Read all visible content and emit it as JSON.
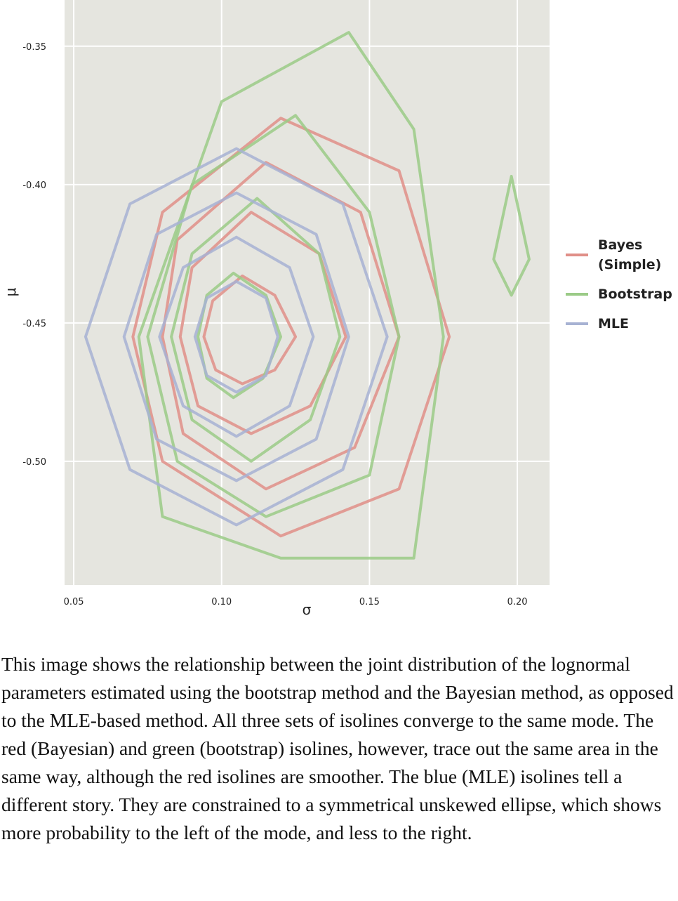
{
  "chart_data": {
    "type": "contour",
    "xlabel": "σ",
    "ylabel": "μ",
    "xlim": [
      0.0469,
      0.2109
    ],
    "ylim": [
      -0.5447,
      -0.3333
    ],
    "xticks": [
      0.05,
      {
        "value": 0.1,
        "label": "0.10"
      },
      0.15,
      {
        "value": 0.2,
        "label": "0.20"
      }
    ],
    "yticks": [
      -0.35,
      {
        "value": -0.4,
        "label": "-0.40"
      },
      -0.45,
      {
        "value": -0.5,
        "label": "-0.50"
      }
    ],
    "grid": true,
    "legend": "right",
    "series": [
      {
        "name": "Bayes (Simple)",
        "color": "#e08f88",
        "contours": [
          {
            "x": [
              0.177,
              0.16,
              0.12,
              0.08,
              0.07,
              0.08,
              0.12,
              0.16
            ],
            "y": [
              -0.455,
              -0.395,
              -0.376,
              -0.41,
              -0.455,
              -0.5,
              -0.527,
              -0.51
            ]
          },
          {
            "x": [
              0.16,
              0.147,
              0.115,
              0.085,
              0.08,
              0.087,
              0.115,
              0.145
            ],
            "y": [
              -0.455,
              -0.41,
              -0.392,
              -0.42,
              -0.455,
              -0.49,
              -0.51,
              -0.495
            ]
          },
          {
            "x": [
              0.142,
              0.133,
              0.11,
              0.09,
              0.086,
              0.092,
              0.11,
              0.13
            ],
            "y": [
              -0.455,
              -0.425,
              -0.41,
              -0.43,
              -0.455,
              -0.48,
              -0.49,
              -0.48
            ]
          },
          {
            "x": [
              0.125,
              0.118,
              0.107,
              0.097,
              0.094,
              0.098,
              0.107,
              0.118
            ],
            "y": [
              -0.455,
              -0.44,
              -0.433,
              -0.442,
              -0.455,
              -0.467,
              -0.472,
              -0.467
            ]
          }
        ]
      },
      {
        "name": "Bootstrap",
        "color": "#9bcb87",
        "contours": [
          {
            "x": [
              0.175,
              0.165,
              0.143,
              0.1,
              0.072,
              0.08,
              0.12,
              0.165
            ],
            "y": [
              -0.455,
              -0.38,
              -0.345,
              -0.37,
              -0.455,
              -0.52,
              -0.535,
              -0.535
            ]
          },
          {
            "x": [
              0.16,
              0.15,
              0.125,
              0.09,
              0.075,
              0.085,
              0.115,
              0.15
            ],
            "y": [
              -0.455,
              -0.41,
              -0.375,
              -0.4,
              -0.455,
              -0.5,
              -0.52,
              -0.505
            ]
          },
          {
            "x": [
              0.14,
              0.133,
              0.112,
              0.09,
              0.083,
              0.09,
              0.11,
              0.13
            ],
            "y": [
              -0.455,
              -0.425,
              -0.405,
              -0.425,
              -0.455,
              -0.485,
              -0.5,
              -0.485
            ]
          },
          {
            "x": [
              0.12,
              0.115,
              0.104,
              0.095,
              0.092,
              0.095,
              0.104,
              0.114
            ],
            "y": [
              -0.455,
              -0.44,
              -0.432,
              -0.44,
              -0.455,
              -0.47,
              -0.477,
              -0.47
            ]
          },
          {
            "x": [
              0.198,
              0.204,
              0.198,
              0.192
            ],
            "y": [
              -0.397,
              -0.427,
              -0.44,
              -0.427
            ]
          }
        ]
      },
      {
        "name": "MLE",
        "color": "#a7b2d3",
        "contours": [
          {
            "x": [
              0.156,
              0.141,
              0.105,
              0.069,
              0.054,
              0.069,
              0.105,
              0.141
            ],
            "y": [
              -0.455,
              -0.407,
              -0.387,
              -0.407,
              -0.455,
              -0.503,
              -0.523,
              -0.503
            ]
          },
          {
            "x": [
              0.143,
              0.132,
              0.105,
              0.078,
              0.067,
              0.078,
              0.105,
              0.132
            ],
            "y": [
              -0.455,
              -0.418,
              -0.403,
              -0.418,
              -0.455,
              -0.492,
              -0.507,
              -0.492
            ]
          },
          {
            "x": [
              0.131,
              0.123,
              0.105,
              0.087,
              0.079,
              0.087,
              0.105,
              0.123
            ],
            "y": [
              -0.455,
              -0.43,
              -0.419,
              -0.43,
              -0.455,
              -0.48,
              -0.491,
              -0.48
            ]
          },
          {
            "x": [
              0.119,
              0.115,
              0.105,
              0.095,
              0.091,
              0.095,
              0.105,
              0.115
            ],
            "y": [
              -0.455,
              -0.441,
              -0.435,
              -0.441,
              -0.455,
              -0.469,
              -0.475,
              -0.469
            ]
          }
        ]
      }
    ]
  },
  "caption": "This image shows the relationship between the joint distribution of the lognormal parameters estimated using the bootstrap method and the Bayesian method, as opposed to the MLE-based method. All three sets of isolines converge to the same mode. The red (Bayesian) and green (bootstrap) isolines, however, trace out the same area in the same way, although the red isolines are smoother. The blue (MLE) isolines tell a different story. They are constrained to a symmetrical unskewed ellipse, which shows more probability to the left of the mode, and less to the right."
}
